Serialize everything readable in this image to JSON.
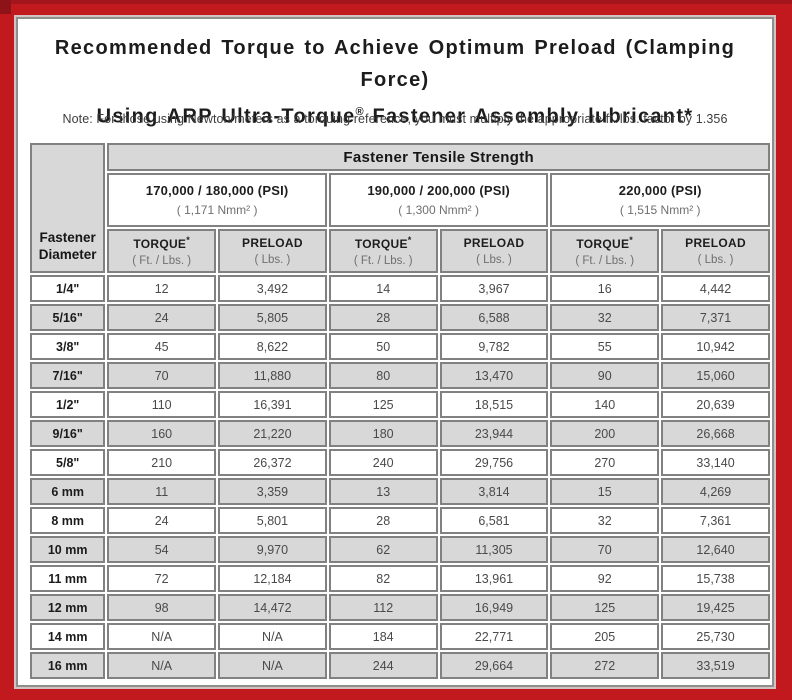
{
  "colors": {
    "frame_red": "#c2191f",
    "frame_red_dark": "#8e1318",
    "shade_gray": "#d8d8d8",
    "grid_gray": "#818181",
    "panel_white": "#ffffff"
  },
  "title": {
    "line1": "Recommended Torque to Achieve Optimum Preload (Clamping Force)",
    "line2_before": "Using ARP Ultra-Torque",
    "line2_reg_mark": "®",
    "line2_after": " Fastener Assembly lubricant*"
  },
  "note": "Note: For those using Newton/meters as a torquing reference, you must multiply the appropriate ft./lbs. factor by 1.356",
  "table": {
    "corner": {
      "line1": "Fastener",
      "line2": "Diameter"
    },
    "tensile_header": "Fastener Tensile Strength",
    "groups": [
      {
        "psi": "170,000 / 180,000 (PSI)",
        "nmm": "( 1,171 Nmm² )"
      },
      {
        "psi": "190,000 / 200,000 (PSI)",
        "nmm": "( 1,300 Nmm² )"
      },
      {
        "psi": "220,000 (PSI)",
        "nmm": "( 1,515 Nmm² )"
      }
    ],
    "sub_headers": {
      "torque_label": "TORQUE",
      "torque_mark": "*",
      "torque_unit": "( Ft. / Lbs. )",
      "preload_label": "PRELOAD",
      "preload_unit": "( Lbs. )"
    },
    "rows": [
      {
        "diameter": "1/4\"",
        "values": [
          "12",
          "3,492",
          "14",
          "3,967",
          "16",
          "4,442"
        ]
      },
      {
        "diameter": "5/16\"",
        "values": [
          "24",
          "5,805",
          "28",
          "6,588",
          "32",
          "7,371"
        ]
      },
      {
        "diameter": "3/8\"",
        "values": [
          "45",
          "8,622",
          "50",
          "9,782",
          "55",
          "10,942"
        ]
      },
      {
        "diameter": "7/16\"",
        "values": [
          "70",
          "11,880",
          "80",
          "13,470",
          "90",
          "15,060"
        ]
      },
      {
        "diameter": "1/2\"",
        "values": [
          "110",
          "16,391",
          "125",
          "18,515",
          "140",
          "20,639"
        ]
      },
      {
        "diameter": "9/16\"",
        "values": [
          "160",
          "21,220",
          "180",
          "23,944",
          "200",
          "26,668"
        ]
      },
      {
        "diameter": "5/8\"",
        "values": [
          "210",
          "26,372",
          "240",
          "29,756",
          "270",
          "33,140"
        ]
      },
      {
        "diameter": "6 mm",
        "values": [
          "11",
          "3,359",
          "13",
          "3,814",
          "15",
          "4,269"
        ]
      },
      {
        "diameter": "8 mm",
        "values": [
          "24",
          "5,801",
          "28",
          "6,581",
          "32",
          "7,361"
        ]
      },
      {
        "diameter": "10 mm",
        "values": [
          "54",
          "9,970",
          "62",
          "11,305",
          "70",
          "12,640"
        ]
      },
      {
        "diameter": "11 mm",
        "values": [
          "72",
          "12,184",
          "82",
          "13,961",
          "92",
          "15,738"
        ]
      },
      {
        "diameter": "12 mm",
        "values": [
          "98",
          "14,472",
          "112",
          "16,949",
          "125",
          "19,425"
        ]
      },
      {
        "diameter": "14 mm",
        "values": [
          "N/A",
          "N/A",
          "184",
          "22,771",
          "205",
          "25,730"
        ]
      },
      {
        "diameter": "16 mm",
        "values": [
          "N/A",
          "N/A",
          "244",
          "29,664",
          "272",
          "33,519"
        ]
      }
    ]
  }
}
